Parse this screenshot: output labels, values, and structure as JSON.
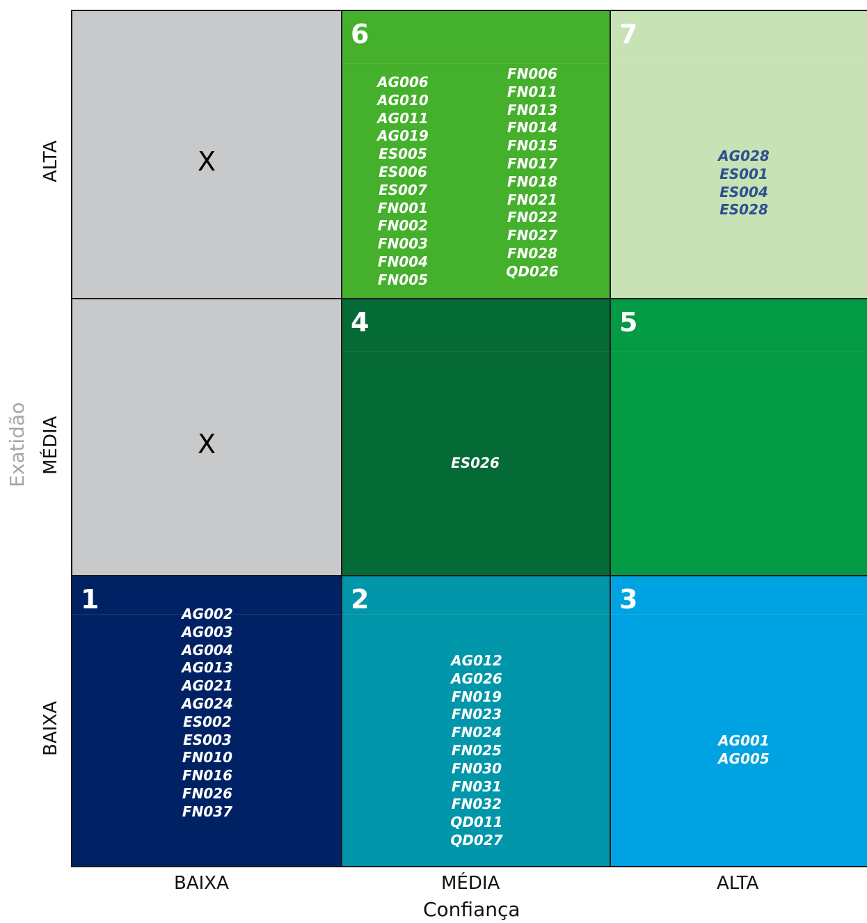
{
  "axes": {
    "x_title": "Confiança",
    "y_title": "Exatidão",
    "x_ticks": [
      "BAIXA",
      "MÉDIA",
      "ALTA"
    ],
    "y_ticks": [
      "ALTA",
      "MÉDIA",
      "BAIXA"
    ]
  },
  "cells": {
    "top_left": {
      "mark": "X",
      "color": "#c8c9cb"
    },
    "mid_left": {
      "mark": "X",
      "color": "#c8c9cb"
    },
    "q6": {
      "number": "6",
      "color": "#45b02b",
      "codes_a": [
        "AG006",
        "AG010",
        "AG011",
        "AG019",
        "ES005",
        "ES006",
        "ES007",
        "FN001",
        "FN002",
        "FN003",
        "FN004",
        "FN005"
      ],
      "codes_b": [
        "FN006",
        "FN011",
        "FN013",
        "FN014",
        "FN015",
        "FN017",
        "FN018",
        "FN021",
        "FN022",
        "FN027",
        "FN028",
        "QD026"
      ]
    },
    "q7": {
      "number": "7",
      "color": "#c7e2b5",
      "text_color": "#2e4f8f",
      "codes": [
        "AG028",
        "ES001",
        "ES004",
        "ES028"
      ]
    },
    "q4": {
      "number": "4",
      "color": "#046a36",
      "codes": [
        "ES026"
      ]
    },
    "q5": {
      "number": "5",
      "color": "#039a44",
      "codes": []
    },
    "q1": {
      "number": "1",
      "color": "#002265",
      "codes": [
        "AG002",
        "AG003",
        "AG004",
        "AG013",
        "AG021",
        "AG024",
        "ES002",
        "ES003",
        "FN010",
        "FN016",
        "FN026",
        "FN037"
      ]
    },
    "q2": {
      "number": "2",
      "color": "#0196a9",
      "codes": [
        "AG012",
        "AG026",
        "FN019",
        "FN023",
        "FN024",
        "FN025",
        "FN030",
        "FN031",
        "FN032",
        "QD011",
        "QD027"
      ]
    },
    "q3": {
      "number": "3",
      "color": "#00a3e1",
      "codes": [
        "AG001",
        "AG005"
      ]
    }
  }
}
